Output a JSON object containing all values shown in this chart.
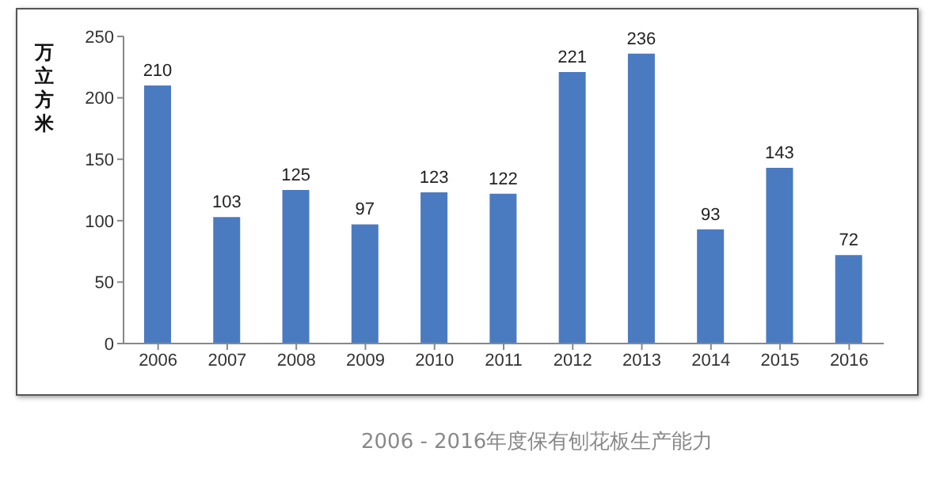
{
  "chart_data": {
    "type": "bar",
    "ylabel": "万立方米",
    "annotations": [
      "2006 - 2016年度保有刨花板生产能力"
    ],
    "categories": [
      "2006",
      "2007",
      "2008",
      "2009",
      "2010",
      "2011",
      "2012",
      "2013",
      "2014",
      "2015",
      "2016"
    ],
    "values": [
      210,
      103,
      125,
      97,
      123,
      122,
      221,
      236,
      93,
      143,
      72
    ],
    "color": "#4a7bc0",
    "ylim": [
      0,
      250
    ],
    "yticks": [
      0,
      50,
      100,
      150,
      200,
      250
    ],
    "data_labels": true
  }
}
